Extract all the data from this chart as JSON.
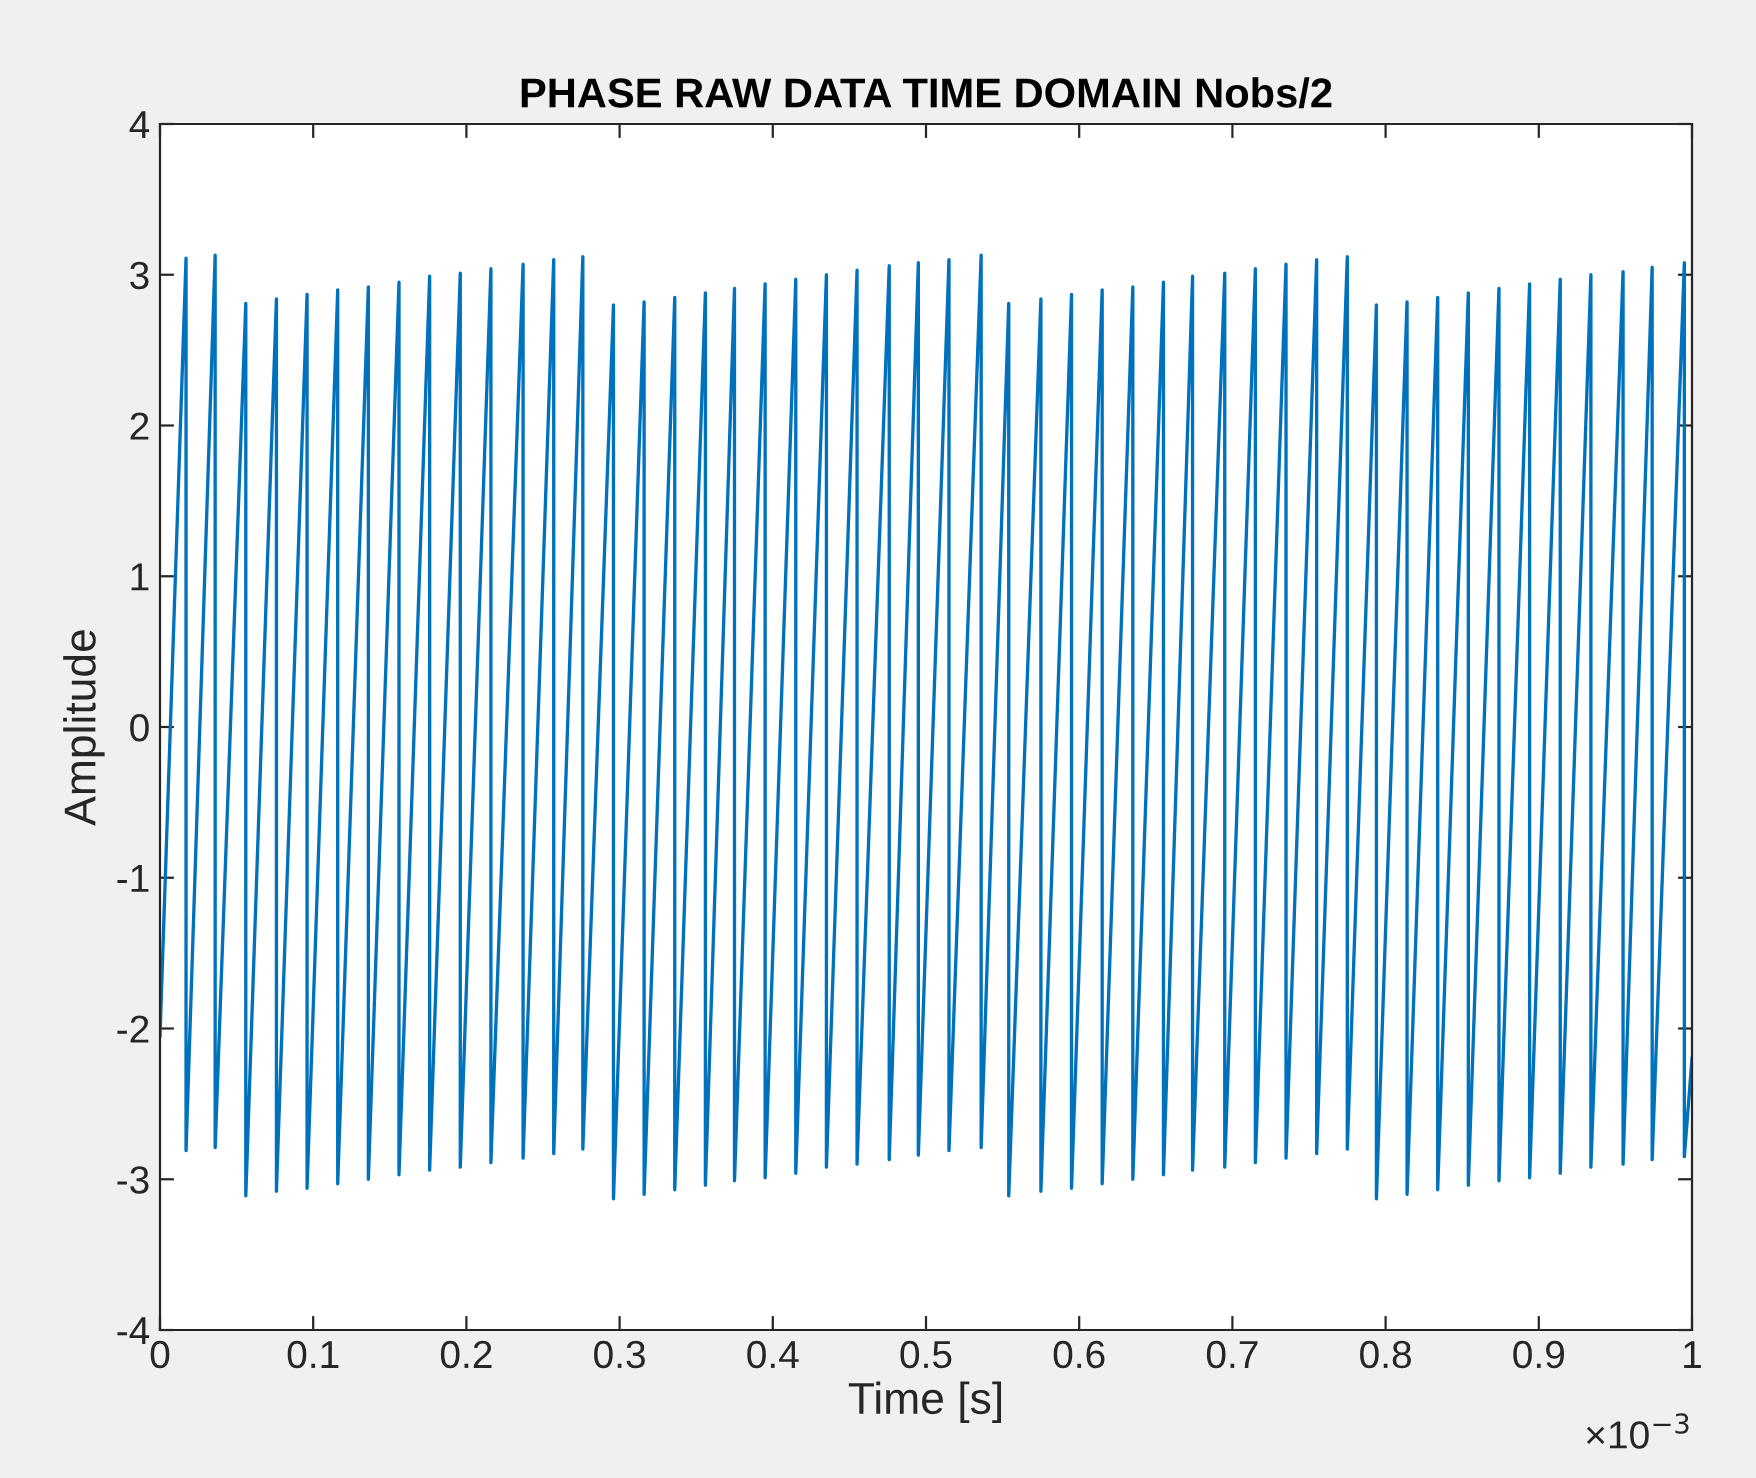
{
  "chart_data": {
    "type": "line",
    "title": "PHASE RAW DATA TIME DOMAIN Nobs/2",
    "xlabel": "Time [s]",
    "ylabel": "Amplitude",
    "annotations": [
      "×10$^{−3}$"
    ],
    "xlim": [
      0,
      1
    ],
    "xticks": [
      0,
      0.1,
      0.2,
      0.3,
      0.4,
      0.5,
      0.6,
      0.7,
      0.8,
      0.9,
      1
    ],
    "ylim": [
      -4,
      4
    ],
    "yticks": [
      -4,
      -3,
      -2,
      -1,
      0,
      1,
      2,
      3,
      4
    ],
    "grid": false,
    "legend": false,
    "marker": "none",
    "line_style": "solid",
    "series": [
      {
        "color": "#0072bd",
        "x": [
          0,
          0.017,
          0.017,
          0.036,
          0.036,
          0.056,
          0.056,
          0.076,
          0.076,
          0.096,
          0.096,
          0.116,
          0.116,
          0.136,
          0.136,
          0.156,
          0.156,
          0.176,
          0.176,
          0.196,
          0.196,
          0.216,
          0.216,
          0.237,
          0.237,
          0.257,
          0.257,
          0.276,
          0.276,
          0.296,
          0.296,
          0.316,
          0.316,
          0.336,
          0.336,
          0.356,
          0.356,
          0.375,
          0.375,
          0.395,
          0.395,
          0.415,
          0.415,
          0.435,
          0.435,
          0.455,
          0.455,
          0.476,
          0.476,
          0.495,
          0.495,
          0.515,
          0.515,
          0.536,
          0.536,
          0.554,
          0.554,
          0.575,
          0.575,
          0.595,
          0.595,
          0.615,
          0.615,
          0.635,
          0.635,
          0.655,
          0.655,
          0.674,
          0.674,
          0.695,
          0.695,
          0.715,
          0.715,
          0.735,
          0.735,
          0.755,
          0.755,
          0.775,
          0.775,
          0.794,
          0.794,
          0.814,
          0.814,
          0.834,
          0.834,
          0.854,
          0.854,
          0.874,
          0.874,
          0.894,
          0.894,
          0.914,
          0.914,
          0.934,
          0.934,
          0.955,
          0.955,
          0.974,
          0.974,
          0.995,
          0.995,
          1
        ],
        "values": [
          -2.05,
          3.11,
          -2.81,
          3.13,
          -2.79,
          2.81,
          -3.11,
          2.84,
          -3.08,
          2.87,
          -3.06,
          2.9,
          -3.03,
          2.92,
          -3.0,
          2.95,
          -2.97,
          2.99,
          -2.94,
          3.01,
          -2.92,
          3.04,
          -2.89,
          3.07,
          -2.86,
          3.1,
          -2.83,
          3.12,
          -2.8,
          2.8,
          -3.13,
          2.82,
          -3.1,
          2.85,
          -3.07,
          2.88,
          -3.04,
          2.91,
          -3.01,
          2.94,
          -2.99,
          2.97,
          -2.96,
          3.0,
          -2.92,
          3.03,
          -2.9,
          3.06,
          -2.87,
          3.08,
          -2.84,
          3.1,
          -2.81,
          3.13,
          -2.79,
          2.81,
          -3.11,
          2.84,
          -3.08,
          2.87,
          -3.06,
          2.9,
          -3.03,
          2.92,
          -3.0,
          2.95,
          -2.97,
          2.99,
          -2.94,
          3.01,
          -2.92,
          3.04,
          -2.89,
          3.07,
          -2.86,
          3.1,
          -2.83,
          3.12,
          -2.8,
          2.8,
          -3.13,
          2.82,
          -3.1,
          2.85,
          -3.07,
          2.88,
          -3.04,
          2.91,
          -3.01,
          2.94,
          -2.99,
          2.97,
          -2.96,
          3.0,
          -2.92,
          3.02,
          -2.9,
          3.05,
          -2.87,
          3.08,
          -2.85,
          -2.2
        ]
      }
    ]
  }
}
